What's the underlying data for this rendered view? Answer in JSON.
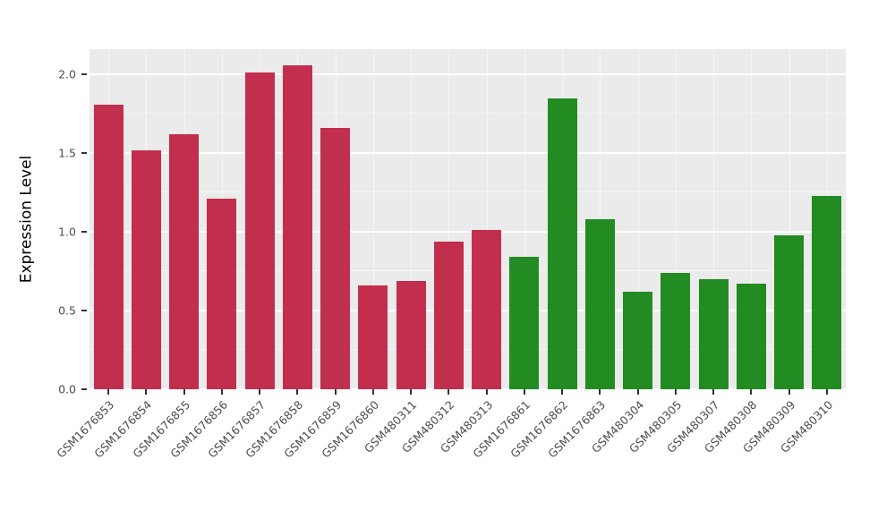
{
  "chart_data": {
    "type": "bar",
    "title": "",
    "xlabel": "",
    "ylabel": "Expression Level",
    "ylim": [
      0,
      2.16
    ],
    "ytick_values": [
      0,
      0.5,
      1.0,
      1.5,
      2.0
    ],
    "ytick_labels": [
      "0.0",
      "0.5",
      "1.0",
      "1.5",
      "2.0"
    ],
    "minor_ticks": [
      0.25,
      0.75,
      1.25,
      1.75
    ],
    "grid": true,
    "legend_position": "none",
    "panel_background": "#EBEBEB",
    "grid_color": "#FFFFFF",
    "categories": [
      "GSM1676853",
      "GSM1676854",
      "GSM1676855",
      "GSM1676856",
      "GSM1676857",
      "GSM1676858",
      "GSM1676859",
      "GSM1676860",
      "GSM480311",
      "GSM480312",
      "GSM480313",
      "GSM1676861",
      "GSM1676862",
      "GSM1676863",
      "GSM480304",
      "GSM480305",
      "GSM480307",
      "GSM480308",
      "GSM480309",
      "GSM480310"
    ],
    "values": [
      1.81,
      1.52,
      1.62,
      1.21,
      2.01,
      2.06,
      1.66,
      0.66,
      0.69,
      0.94,
      1.01,
      0.84,
      1.85,
      1.08,
      0.62,
      0.74,
      0.7,
      0.67,
      0.98,
      1.23
    ],
    "colors": [
      "#C22E4E",
      "#C22E4E",
      "#C22E4E",
      "#C22E4E",
      "#C22E4E",
      "#C22E4E",
      "#C22E4E",
      "#C22E4E",
      "#C22E4E",
      "#C22E4E",
      "#C22E4E",
      "#228B22",
      "#228B22",
      "#228B22",
      "#228B22",
      "#228B22",
      "#228B22",
      "#228B22",
      "#228B22",
      "#228B22"
    ],
    "group_colors": {
      "group1": "#C22E4E",
      "group2": "#228B22"
    }
  }
}
